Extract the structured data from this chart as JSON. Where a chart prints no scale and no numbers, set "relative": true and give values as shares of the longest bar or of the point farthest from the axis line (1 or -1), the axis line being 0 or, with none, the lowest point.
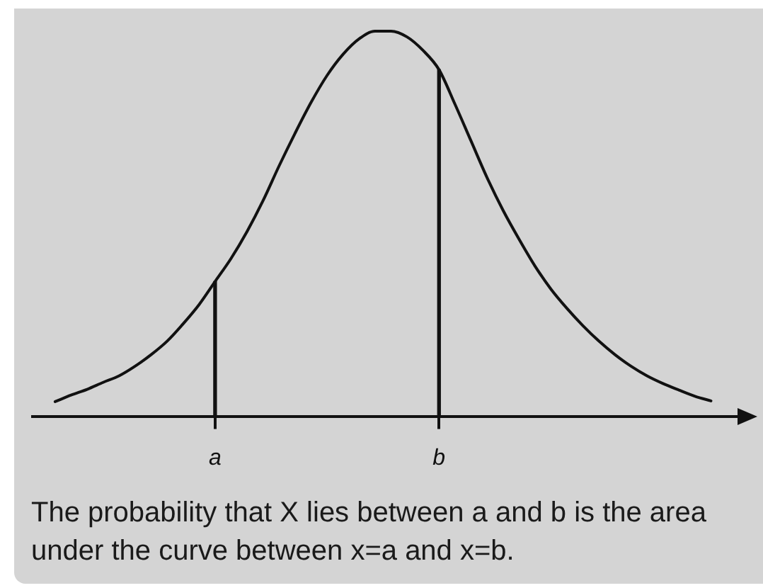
{
  "chart_data": {
    "type": "line",
    "relative": true,
    "tick_labels": "x",
    "marker": "none",
    "legend": false,
    "grid": false,
    "categories": [
      null,
      null,
      null,
      null,
      null,
      null,
      null,
      null,
      null,
      null,
      "a",
      null,
      null,
      null,
      null,
      null,
      null,
      null,
      null,
      null,
      null,
      null,
      null,
      null,
      "b",
      null,
      null,
      null,
      null,
      null,
      null,
      null,
      null,
      null,
      null,
      null,
      null,
      null,
      null,
      null,
      null,
      null
    ],
    "series": [
      {
        "color": "#111111",
        "values": [
          0.038,
          0.055,
          0.07,
          0.088,
          0.105,
          0.13,
          0.16,
          0.195,
          0.24,
          0.29,
          0.35,
          0.41,
          0.48,
          0.56,
          0.65,
          0.735,
          0.815,
          0.885,
          0.94,
          0.98,
          1,
          1,
          0.985,
          0.95,
          0.9,
          0.81,
          0.715,
          0.62,
          0.535,
          0.46,
          0.39,
          0.33,
          0.28,
          0.235,
          0.195,
          0.16,
          0.13,
          0.105,
          0.085,
          0.068,
          0.052,
          0.04
        ]
      },
      {
        "type": "bar",
        "color": "#111111",
        "values": [
          null,
          null,
          null,
          null,
          null,
          null,
          null,
          null,
          null,
          null,
          0.35,
          null,
          null,
          null,
          null,
          null,
          null,
          null,
          null,
          null,
          null,
          null,
          null,
          null,
          0.9,
          null,
          null,
          null,
          null,
          null,
          null,
          null,
          null,
          null,
          null,
          null,
          null,
          null,
          null,
          null,
          null,
          null
        ]
      }
    ],
    "annotations": [
      "The probability that X lies between a and b is the area under the curve between x=a and x=b."
    ]
  }
}
